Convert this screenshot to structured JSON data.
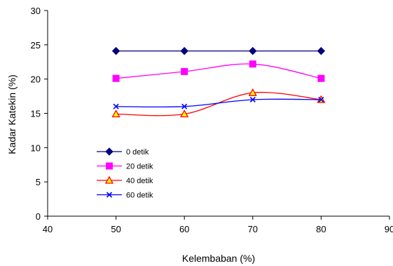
{
  "chart_data": {
    "type": "line",
    "title": "",
    "xlabel": "Kelembaban (%)",
    "ylabel": "Kadar Katekin (%)",
    "xlim": [
      40,
      90
    ],
    "ylim": [
      0,
      30
    ],
    "xticks": [
      40,
      50,
      60,
      70,
      80,
      90
    ],
    "yticks": [
      0,
      5,
      10,
      15,
      20,
      25,
      30
    ],
    "grid": false,
    "legend_position": "left-center",
    "x": [
      50,
      60,
      70,
      80
    ],
    "series": [
      {
        "name": "0 detik",
        "values": [
          24.1,
          24.1,
          24.1,
          24.1
        ],
        "color": "#000080",
        "marker": "diamond"
      },
      {
        "name": "20 detik",
        "values": [
          20.1,
          21.1,
          22.2,
          20.1
        ],
        "color": "#ff00ff",
        "marker": "square"
      },
      {
        "name": "40 detik",
        "values": [
          14.9,
          14.9,
          18.0,
          17.0
        ],
        "color": "#ff0000",
        "marker": "triangle",
        "marker_fill": "#ffff00"
      },
      {
        "name": "60 detik",
        "values": [
          16.0,
          16.0,
          17.0,
          17.0
        ],
        "color": "#0000ff",
        "marker": "x"
      }
    ]
  }
}
